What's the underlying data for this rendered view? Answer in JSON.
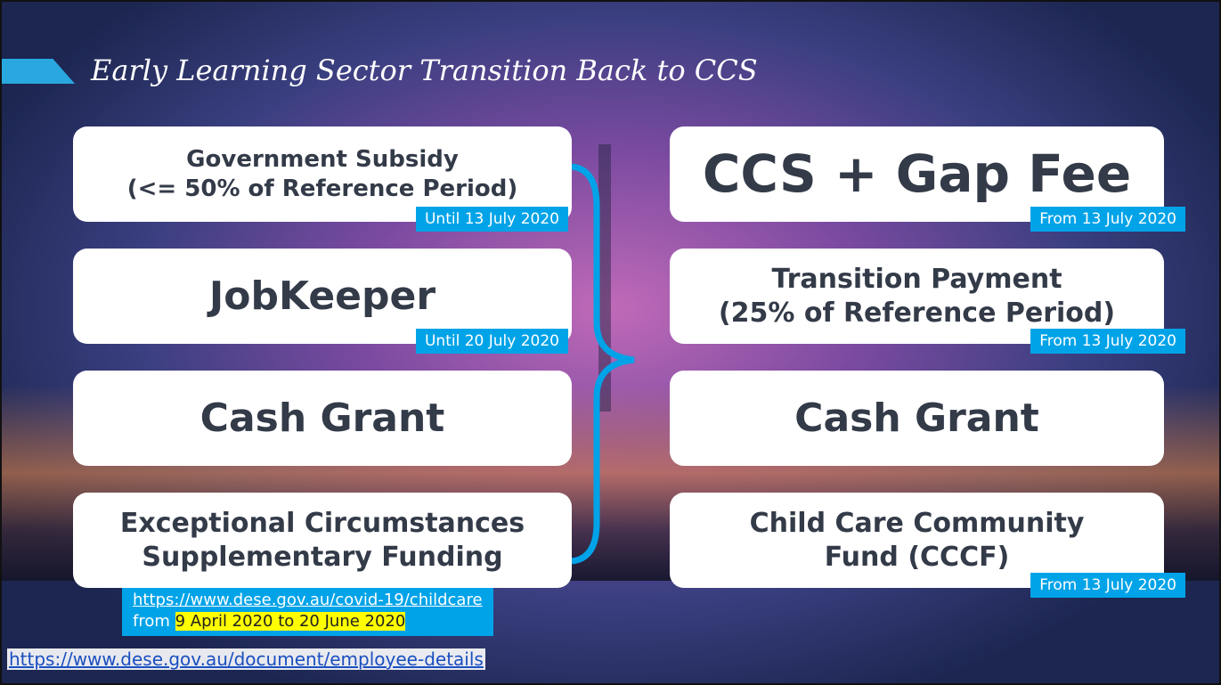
{
  "header": {
    "title": "Early Learning Sector Transition Back to CCS"
  },
  "left": [
    {
      "label": [
        "Government Subsidy",
        "(<= 50% of Reference  Period)"
      ],
      "tag": "Until 13 July 2020"
    },
    {
      "label": [
        "JobKeeper"
      ],
      "tag": "Until 20 July 2020"
    },
    {
      "label": [
        "Cash Grant"
      ]
    },
    {
      "label": [
        "Exceptional Circumstances",
        "Supplementary Funding"
      ]
    }
  ],
  "right": [
    {
      "label": [
        "CCS + Gap Fee"
      ],
      "tag": "From 13 July 2020"
    },
    {
      "label": [
        "Transition Payment",
        "(25% of Reference Period)"
      ],
      "tag": "From 13 July 2020"
    },
    {
      "label": [
        "Cash Grant"
      ]
    },
    {
      "label": [
        "Child Care Community",
        "Fund (CCCF)"
      ],
      "tag": "From 13 July 2020"
    }
  ],
  "note": {
    "link": "https://www.dese.gov.au/covid-19/childcare",
    "prefix": "from",
    "highlight": "9 April 2020 to 20 June 2020"
  },
  "footer_link": "https://www.dese.gov.au/document/employee-details"
}
